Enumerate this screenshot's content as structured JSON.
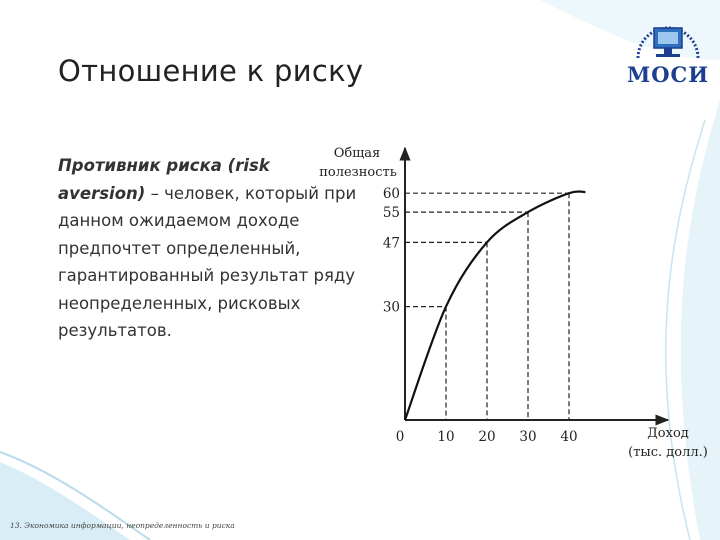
{
  "slide": {
    "title": "Отношение к риску",
    "body_term": "Противник риска (risk aversion)",
    "body_rest": " – человек, который при данном ожидаемом доходе предпочтет определенный, гарантированный результат ряду неопределенных, рисковых результатов.",
    "footer": "13. Экономика информации, неопределенность и риска",
    "logo_text": "МОСИ",
    "colors": {
      "logo": "#1c3f8f",
      "wave": "#b9dceb",
      "curve": "#111111"
    }
  },
  "chart_data": {
    "type": "line",
    "ylabel_line1": "Общая",
    "ylabel_line2": "полезность",
    "xlabel_line1": "Доход",
    "xlabel_line2": "(тыс. долл.)",
    "origin_label": "0",
    "x_ticks": [
      "10",
      "20",
      "30",
      "40"
    ],
    "y_ticks": [
      "30",
      "47",
      "55",
      "60"
    ],
    "series": [
      {
        "x": [
          0,
          10,
          20,
          30,
          40,
          44
        ],
        "y": [
          0,
          30,
          47,
          55,
          60,
          60.3
        ]
      }
    ],
    "dashed_guides": [
      {
        "x": 10,
        "y": 30
      },
      {
        "x": 20,
        "y": 47
      },
      {
        "x": 30,
        "y": 55
      },
      {
        "x": 40,
        "y": 60
      }
    ],
    "grid": false
  }
}
